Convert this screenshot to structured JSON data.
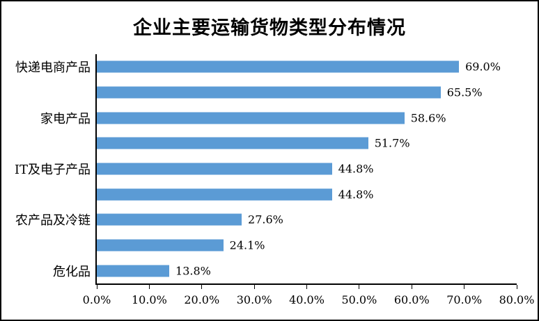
{
  "frame": {
    "background": "#FFFFFF",
    "border_color": "#000000"
  },
  "chart_data": {
    "type": "bar",
    "orientation": "horizontal",
    "title": "企业主要运输货物类型分布情况",
    "categories": [
      "快递电商产品",
      "",
      "家电产品",
      "",
      "IT及电子产品",
      "",
      "农产品及冷链",
      "",
      "危化品"
    ],
    "values": [
      69.0,
      65.5,
      58.6,
      51.7,
      44.8,
      44.8,
      27.6,
      24.1,
      13.8
    ],
    "value_labels": [
      "69.0%",
      "65.5%",
      "58.6%",
      "51.7%",
      "44.8%",
      "44.8%",
      "27.6%",
      "24.1%",
      "13.8%"
    ],
    "x_ticks": [
      {
        "label": "0.0%",
        "value": 0
      },
      {
        "label": "10.0%",
        "value": 10
      },
      {
        "label": "20.0%",
        "value": 20
      },
      {
        "label": "30.0%",
        "value": 30
      },
      {
        "label": "40.0%",
        "value": 40
      },
      {
        "label": "50.0%",
        "value": 50
      },
      {
        "label": "60.0%",
        "value": 60
      },
      {
        "label": "70.0%",
        "value": 70
      },
      {
        "label": "80.0%",
        "value": 80
      }
    ],
    "xlim": [
      0,
      80
    ],
    "xlabel": "",
    "ylabel": "",
    "bar_color": "#5B9BD5",
    "axis_color": "#000000",
    "text_color": "#000000",
    "grid": false,
    "legend": false
  }
}
